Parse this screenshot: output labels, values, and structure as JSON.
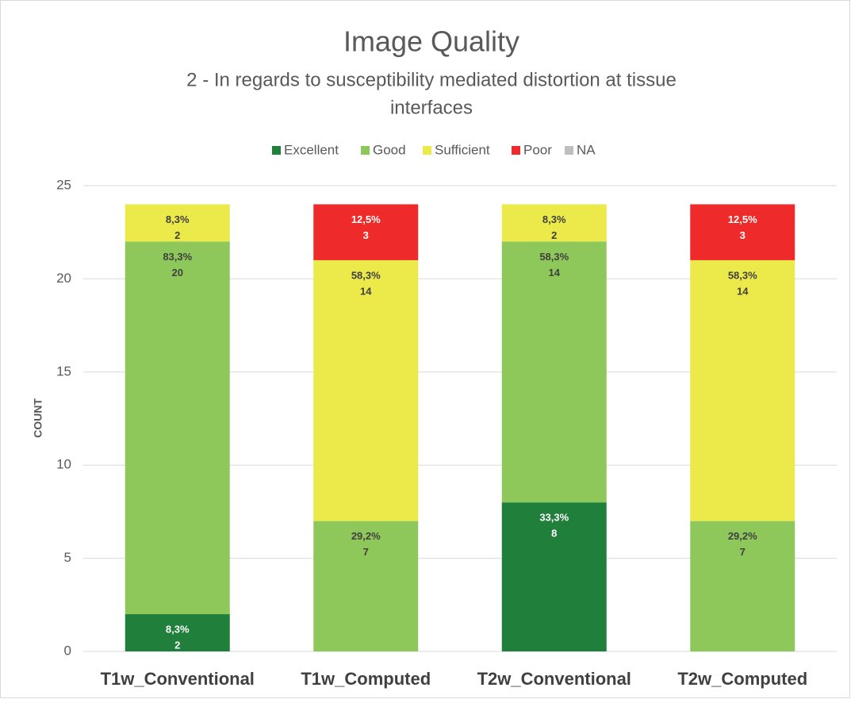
{
  "chart_data": {
    "type": "stacked_bar",
    "title": "Image Quality",
    "subtitle": [
      "2 - In regards to susceptibility mediated distortion at tissue",
      "interfaces"
    ],
    "y_label": "COUNT",
    "categories": [
      "T1w_Conventional",
      "T1w_Computed",
      "T2w_Conventional",
      "T2w_Computed"
    ],
    "series": [
      {
        "name": "Excellent",
        "color": "#217f3c",
        "label_color": "#ffffff",
        "values": [
          2,
          0,
          8,
          0
        ],
        "percent_labels": [
          "8,3%",
          null,
          "33,3%",
          null
        ]
      },
      {
        "name": "Good",
        "color": "#8fc85a",
        "label_color": "#404040",
        "values": [
          20,
          7,
          14,
          7
        ],
        "percent_labels": [
          "83,3%",
          "29,2%",
          "58,3%",
          "29,2%"
        ]
      },
      {
        "name": "Sufficient",
        "color": "#ecea4a",
        "label_color": "#404040",
        "values": [
          2,
          14,
          2,
          14
        ],
        "percent_labels": [
          "8,3%",
          "58,3%",
          "8,3%",
          "58,3%"
        ]
      },
      {
        "name": "Poor",
        "color": "#ee2a2a",
        "label_color": "#ffffff",
        "values": [
          0,
          3,
          0,
          3
        ],
        "percent_labels": [
          null,
          "12,5%",
          null,
          "12,5%"
        ]
      },
      {
        "name": "NA",
        "color": "#bfbfbf",
        "label_color": "#404040",
        "values": [
          0,
          0,
          0,
          0
        ],
        "percent_labels": [
          null,
          null,
          null,
          null
        ]
      }
    ],
    "ylim": [
      0,
      25
    ],
    "yticks": [
      0,
      5,
      10,
      15,
      20,
      25
    ],
    "grid": true,
    "legend": "top"
  }
}
